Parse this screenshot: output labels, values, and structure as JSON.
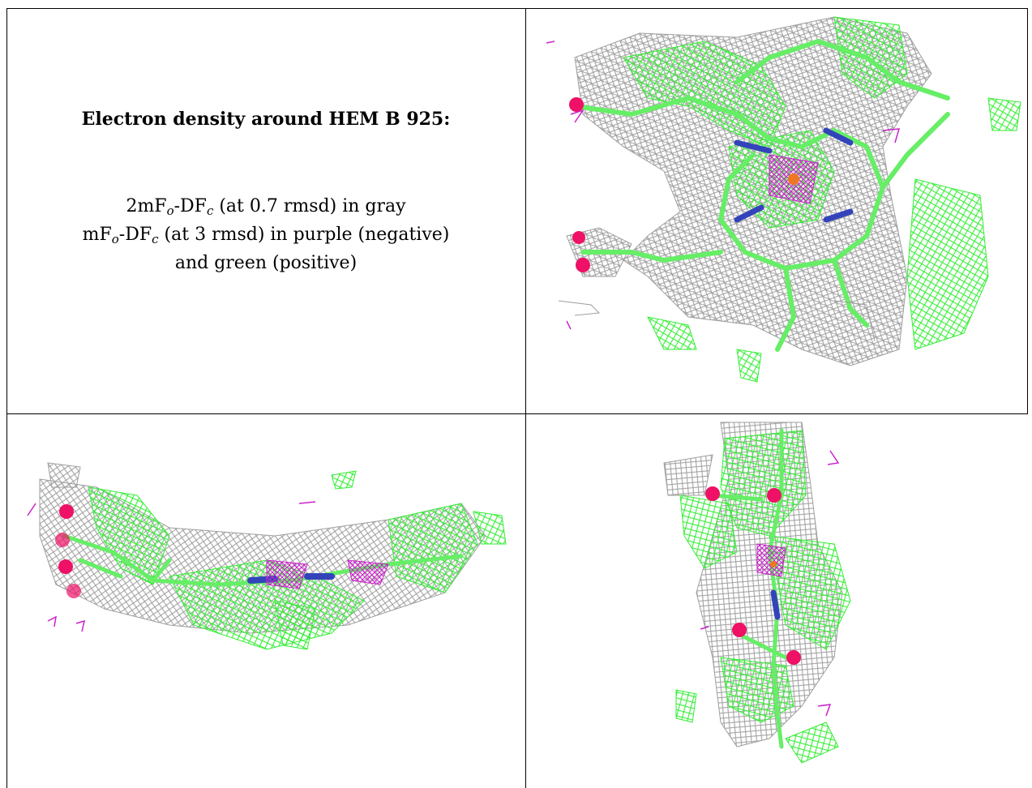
{
  "caption": {
    "title": "Electron density around HEM B 925:",
    "line1_prefix": "2mF",
    "line1_sub1": "o",
    "line1_mid": "-DF",
    "line1_sub2": "c",
    "line1_suffix": " (at 0.7 rmsd) in gray",
    "line2_prefix": "mF",
    "line2_sub1": "o",
    "line2_mid": "-DF",
    "line2_sub2": "c",
    "line2_suffix": " (at 3 rmsd) in purple (negative)",
    "line3": "and green (positive)"
  },
  "colors": {
    "mesh_gray": "#9e9e9e",
    "mesh_green": "#33ee33",
    "mesh_purple": "#cc22cc",
    "stick_green": "#66ee66",
    "nitrogen_blue": "#3344bb",
    "oxygen_red": "#ee1166",
    "iron_orange": "#ee7722"
  },
  "panels": [
    {
      "name": "top-right-view",
      "content": "heme-face-on-density"
    },
    {
      "name": "bottom-left-view",
      "content": "heme-edge-on-density"
    },
    {
      "name": "bottom-right-view",
      "content": "heme-side-density"
    }
  ]
}
